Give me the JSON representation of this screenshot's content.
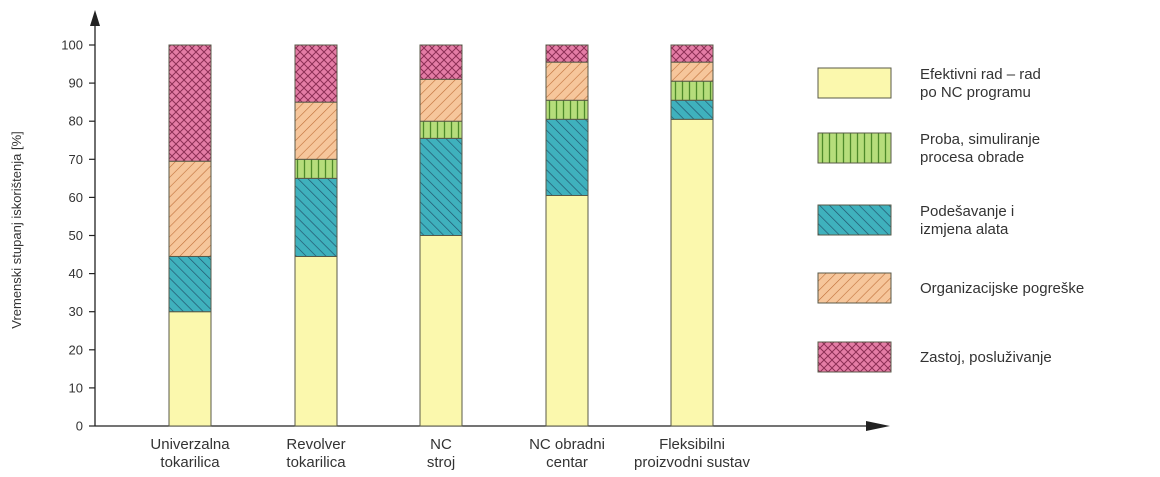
{
  "chart_data": {
    "type": "bar",
    "stacked": true,
    "ylabel": "Vremenski stupanj iskorištenja [%]",
    "xlabel": "",
    "ylim": [
      0,
      100
    ],
    "yticks": [
      0,
      10,
      20,
      30,
      40,
      50,
      60,
      70,
      80,
      90,
      100
    ],
    "grid": false,
    "legend_position": "right",
    "categories": [
      [
        "Univerzalna",
        "tokarilica"
      ],
      [
        "Revolver",
        "tokarilica"
      ],
      [
        "NC",
        "stroj"
      ],
      [
        "NC obradni",
        "centar"
      ],
      [
        "Fleksibilni",
        "proizvodni sustav"
      ]
    ],
    "series": [
      {
        "name": [
          "Efektivni rad – rad",
          "po NC programu"
        ],
        "key": "efektivni",
        "color": "#fbf8ad",
        "pattern": "solid",
        "values": [
          30,
          44.5,
          50,
          60.5,
          80.5
        ]
      },
      {
        "name": [
          "Podešavanje i",
          "izmjena alata"
        ],
        "key": "podesavanje",
        "color": "#3fb1bd",
        "pattern": "diag-fwd",
        "values": [
          14.5,
          20.5,
          25.5,
          20,
          5
        ]
      },
      {
        "name": [
          "Proba, simuliranje",
          "procesa obrade"
        ],
        "key": "proba",
        "color": "#b6dd7b",
        "pattern": "vertical",
        "values": [
          0,
          5,
          4.5,
          5,
          5
        ]
      },
      {
        "name": [
          "Organizacijske pogreške"
        ],
        "key": "organizacijske",
        "color": "#f6c69b",
        "pattern": "diag-back",
        "values": [
          25,
          15,
          11,
          10,
          5
        ]
      },
      {
        "name": [
          "Zastoj, posluživanje"
        ],
        "key": "zastoj",
        "color": "#e47ca5",
        "pattern": "cross",
        "values": [
          30.5,
          15,
          9,
          4.5,
          4.5
        ]
      }
    ],
    "legend_order": [
      "efektivni",
      "proba",
      "podesavanje",
      "organizacijske",
      "zastoj"
    ]
  }
}
